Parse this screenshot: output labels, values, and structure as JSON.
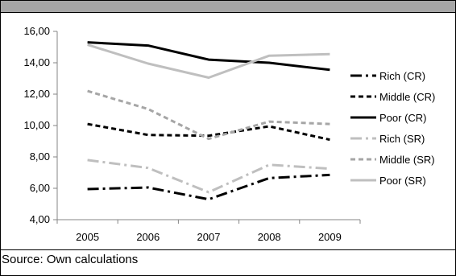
{
  "chart_data": {
    "type": "line",
    "title": "",
    "xlabel": "",
    "ylabel": "",
    "categories": [
      "2005",
      "2006",
      "2007",
      "2008",
      "2009"
    ],
    "ylim": [
      4,
      16
    ],
    "yticks": [
      "4,00",
      "6,00",
      "8,00",
      "10,00",
      "12,00",
      "14,00",
      "16,00"
    ],
    "ytick_values": [
      4,
      6,
      8,
      10,
      12,
      14,
      16
    ],
    "grid": false,
    "legend_position": "right",
    "series": [
      {
        "name": "Rich (CR)",
        "values": [
          5.95,
          6.05,
          5.3,
          6.65,
          6.85
        ],
        "color": "#000000",
        "dash": "dashdot"
      },
      {
        "name": "Middle (CR)",
        "values": [
          10.1,
          9.4,
          9.35,
          9.95,
          9.1
        ],
        "color": "#000000",
        "dash": "dash"
      },
      {
        "name": "Poor (CR)",
        "values": [
          15.3,
          15.1,
          14.2,
          14.0,
          13.55
        ],
        "color": "#000000",
        "dash": "solid"
      },
      {
        "name": "Rich (SR)",
        "values": [
          7.8,
          7.3,
          5.75,
          7.5,
          7.25
        ],
        "color": "#bfbfbf",
        "dash": "dashdot"
      },
      {
        "name": "Middle (SR)",
        "values": [
          12.2,
          11.05,
          9.15,
          10.25,
          10.1
        ],
        "color": "#a6a6a6",
        "dash": "dash"
      },
      {
        "name": "Poor (SR)",
        "values": [
          15.15,
          13.95,
          13.05,
          14.45,
          14.55
        ],
        "color": "#bfbfbf",
        "dash": "solid"
      }
    ]
  },
  "footer": {
    "source": "Source: Own calculations"
  }
}
